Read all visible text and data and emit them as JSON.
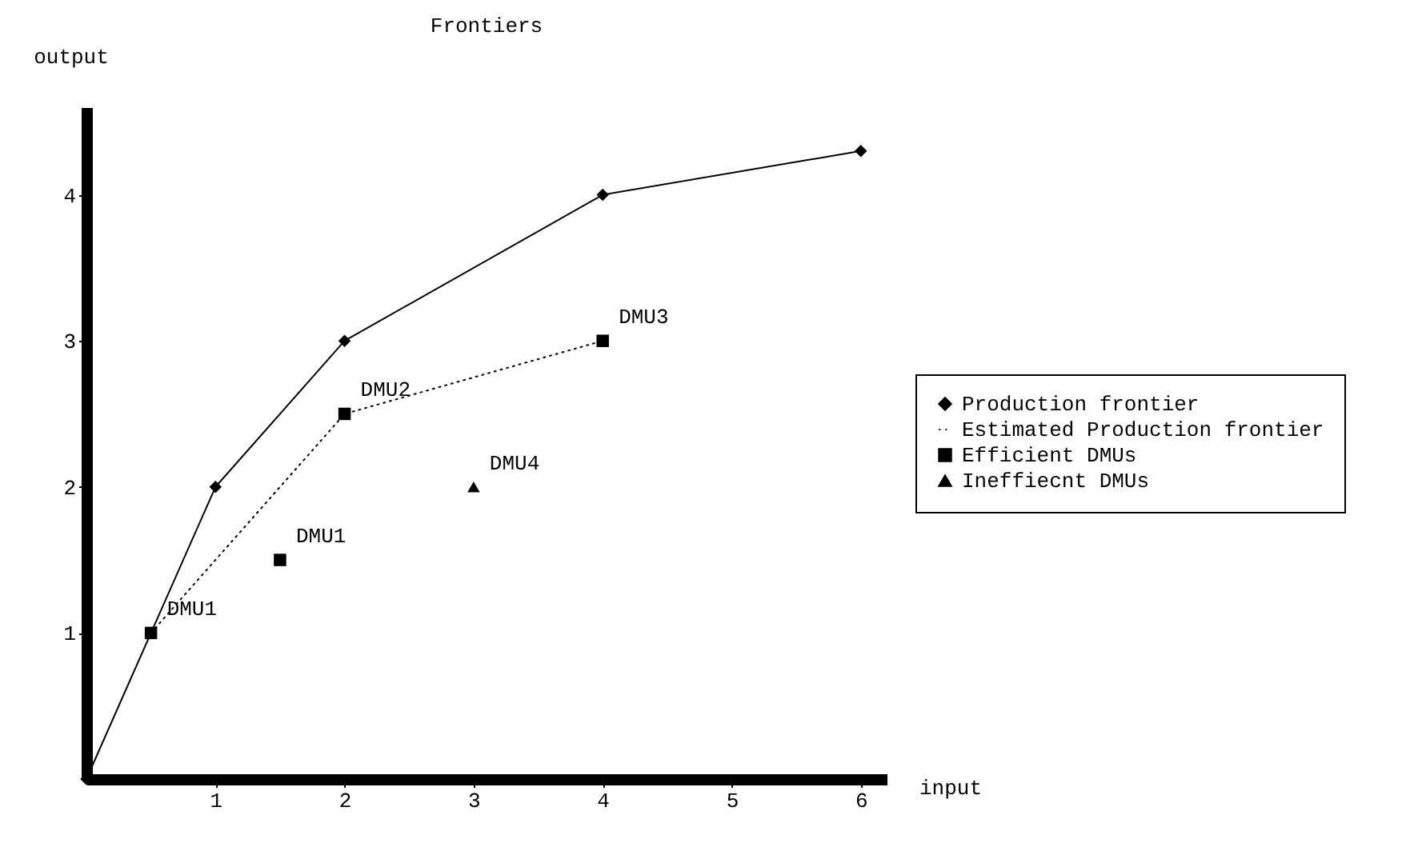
{
  "chart_data": {
    "type": "line",
    "title": "Frontiers",
    "xlabel": "input",
    "ylabel": "output",
    "xlim": [
      0,
      6.2
    ],
    "ylim": [
      0,
      4.6
    ],
    "xticks": [
      1,
      2,
      3,
      4,
      5,
      6
    ],
    "yticks": [
      1,
      2,
      3,
      4
    ],
    "grid": false,
    "legend": "right",
    "series": [
      {
        "name": "Production frontier",
        "color": "#000000",
        "marker": "diamond",
        "line_style": "solid",
        "x": [
          0,
          1,
          2,
          4,
          6
        ],
        "values": [
          0,
          2,
          3,
          4,
          4.3
        ]
      },
      {
        "name": "Estimated Production frontier",
        "color": "#000000",
        "marker": "none",
        "line_style": "dotted",
        "x": [
          0.5,
          2,
          4
        ],
        "values": [
          1,
          2.5,
          3
        ]
      },
      {
        "name": "Efficient DMUs",
        "type": "scatter",
        "color": "#000000",
        "marker": "square",
        "x": [
          0.5,
          1.5,
          2,
          4
        ],
        "values": [
          1,
          1.5,
          2.5,
          3
        ]
      },
      {
        "name": "Ineffiecnt DMUs",
        "type": "scatter",
        "color": "#000000",
        "marker": "triangle",
        "x": [
          3
        ],
        "values": [
          2
        ]
      }
    ],
    "annotations": [
      {
        "text": "DMU1",
        "x": 0.5,
        "y": 1
      },
      {
        "text": "DMU1",
        "x": 1.5,
        "y": 1.5
      },
      {
        "text": "DMU2",
        "x": 2,
        "y": 2.5
      },
      {
        "text": "DMU4",
        "x": 3,
        "y": 2
      },
      {
        "text": "DMU3",
        "x": 4,
        "y": 3
      }
    ]
  }
}
